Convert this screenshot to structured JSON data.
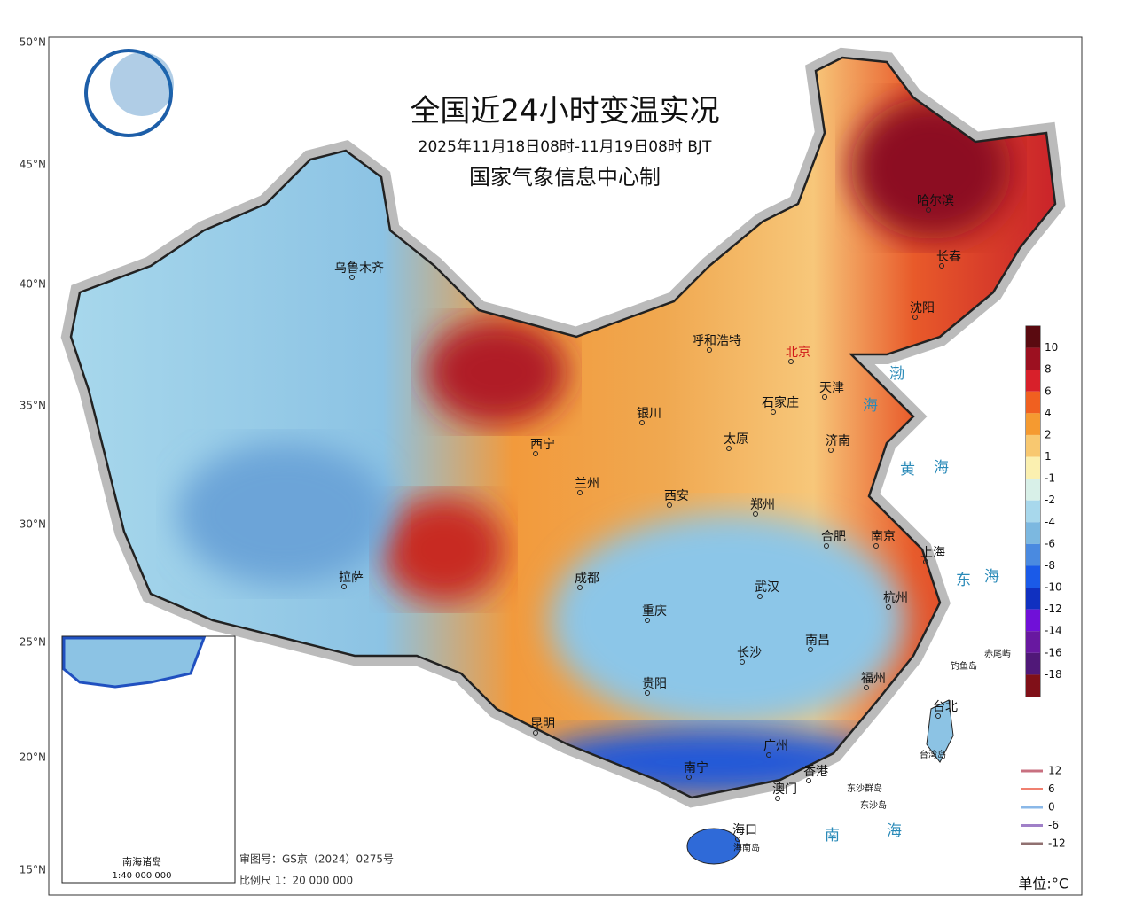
{
  "header": {
    "title": "全国近24小时变温实况",
    "subtitle": "2025年11月18日08时-11月19日08时 BJT",
    "producer": "国家气象信息中心制"
  },
  "lat_labels": [
    "50°N",
    "45°N",
    "40°N",
    "35°N",
    "30°N",
    "25°N",
    "20°N",
    "15°N"
  ],
  "cities": [
    "乌鲁木齐",
    "呼和浩特",
    "北京",
    "天津",
    "哈尔滨",
    "长春",
    "沈阳",
    "银川",
    "石家庄",
    "太原",
    "济南",
    "西宁",
    "兰州",
    "西安",
    "郑州",
    "合肥",
    "南京",
    "上海",
    "成都",
    "拉萨",
    "重庆",
    "武汉",
    "杭州",
    "南昌",
    "长沙",
    "福州",
    "贵阳",
    "台北",
    "昆明",
    "广州",
    "南宁",
    "香港",
    "澳门",
    "海口",
    "海南岛",
    "台湾岛",
    "东沙群岛",
    "东沙岛",
    "钓鱼岛",
    "赤尾屿"
  ],
  "seas": [
    "渤",
    "海",
    "黄",
    "海",
    "东",
    "海",
    "南",
    "海"
  ],
  "legend": {
    "labels": [
      10,
      8,
      6,
      4,
      2,
      1,
      -1,
      -2,
      -4,
      -6,
      -8,
      -10,
      -12,
      -14,
      -16,
      -18
    ]
  },
  "contour_legend": [
    12,
    6,
    0,
    -6,
    -12
  ],
  "unit": "单位:°C",
  "notes": [
    "审图号：GS京（2024）0275号",
    "比例尺  1：20 000 000"
  ],
  "inset": {
    "title": "南海诸岛",
    "scale": "1:40 000 000"
  }
}
